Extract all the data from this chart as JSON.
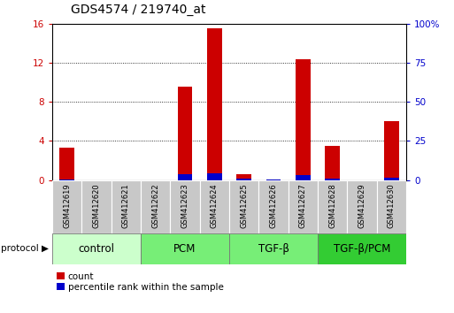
{
  "title": "GDS4574 / 219740_at",
  "samples": [
    "GSM412619",
    "GSM412620",
    "GSM412621",
    "GSM412622",
    "GSM412623",
    "GSM412624",
    "GSM412625",
    "GSM412626",
    "GSM412627",
    "GSM412628",
    "GSM412629",
    "GSM412630"
  ],
  "count_values": [
    3.3,
    0,
    0,
    0,
    9.5,
    15.5,
    0.6,
    0,
    12.3,
    3.5,
    0,
    6.0
  ],
  "percentile_values": [
    0.4,
    0,
    0,
    0,
    3.5,
    4.0,
    1.0,
    0.3,
    3.1,
    0.6,
    0,
    1.5
  ],
  "ylim_left": [
    0,
    16
  ],
  "ylim_right": [
    0,
    100
  ],
  "yticks_left": [
    0,
    4,
    8,
    12,
    16
  ],
  "yticks_right": [
    0,
    25,
    50,
    75,
    100
  ],
  "ytick_labels_right": [
    "0",
    "25",
    "50",
    "75",
    "100%"
  ],
  "groups": [
    {
      "label": "control",
      "start": 0,
      "end": 3
    },
    {
      "label": "PCM",
      "start": 3,
      "end": 6
    },
    {
      "label": "TGF-β",
      "start": 6,
      "end": 9
    },
    {
      "label": "TGF-β/PCM",
      "start": 9,
      "end": 12
    }
  ],
  "group_colors": [
    "#ccffcc",
    "#77ee77",
    "#77ee77",
    "#33cc33"
  ],
  "bar_width": 0.5,
  "count_color": "#cc0000",
  "percentile_color": "#0000cc",
  "plot_bg_color": "#ffffff",
  "tick_label_color_left": "#cc0000",
  "tick_label_color_right": "#0000cc",
  "title_fontsize": 10,
  "tick_fontsize": 7.5,
  "group_label_fontsize": 8.5,
  "protocol_label": "protocol",
  "legend_count": "count",
  "legend_percentile": "percentile rank within the sample"
}
